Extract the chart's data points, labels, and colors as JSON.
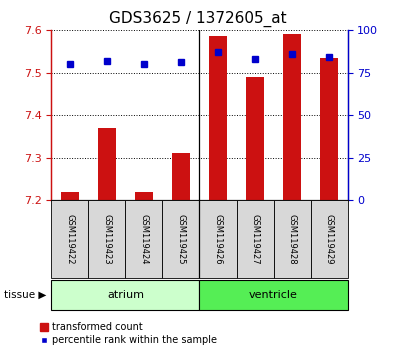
{
  "title": "GDS3625 / 1372605_at",
  "samples": [
    "GSM119422",
    "GSM119423",
    "GSM119424",
    "GSM119425",
    "GSM119426",
    "GSM119427",
    "GSM119428",
    "GSM119429"
  ],
  "bar_values": [
    7.22,
    7.37,
    7.22,
    7.31,
    7.585,
    7.49,
    7.59,
    7.535
  ],
  "percentile_values": [
    80,
    82,
    80,
    81,
    87,
    83,
    86,
    84
  ],
  "bar_bottom": 7.2,
  "ylim": [
    7.2,
    7.6
  ],
  "ylim_right": [
    0,
    100
  ],
  "yticks_left": [
    7.2,
    7.3,
    7.4,
    7.5,
    7.6
  ],
  "yticks_right": [
    0,
    25,
    50,
    75,
    100
  ],
  "bar_color": "#cc1111",
  "dot_color": "#0000cc",
  "atrium_color": "#ccffcc",
  "ventricle_color": "#55ee55",
  "atrium_label": "atrium",
  "ventricle_label": "ventricle",
  "legend_bar_label": "transformed count",
  "legend_dot_label": "percentile rank within the sample",
  "title_fontsize": 11,
  "axis_fontsize": 8,
  "label_fontsize": 7,
  "bar_width": 0.5
}
